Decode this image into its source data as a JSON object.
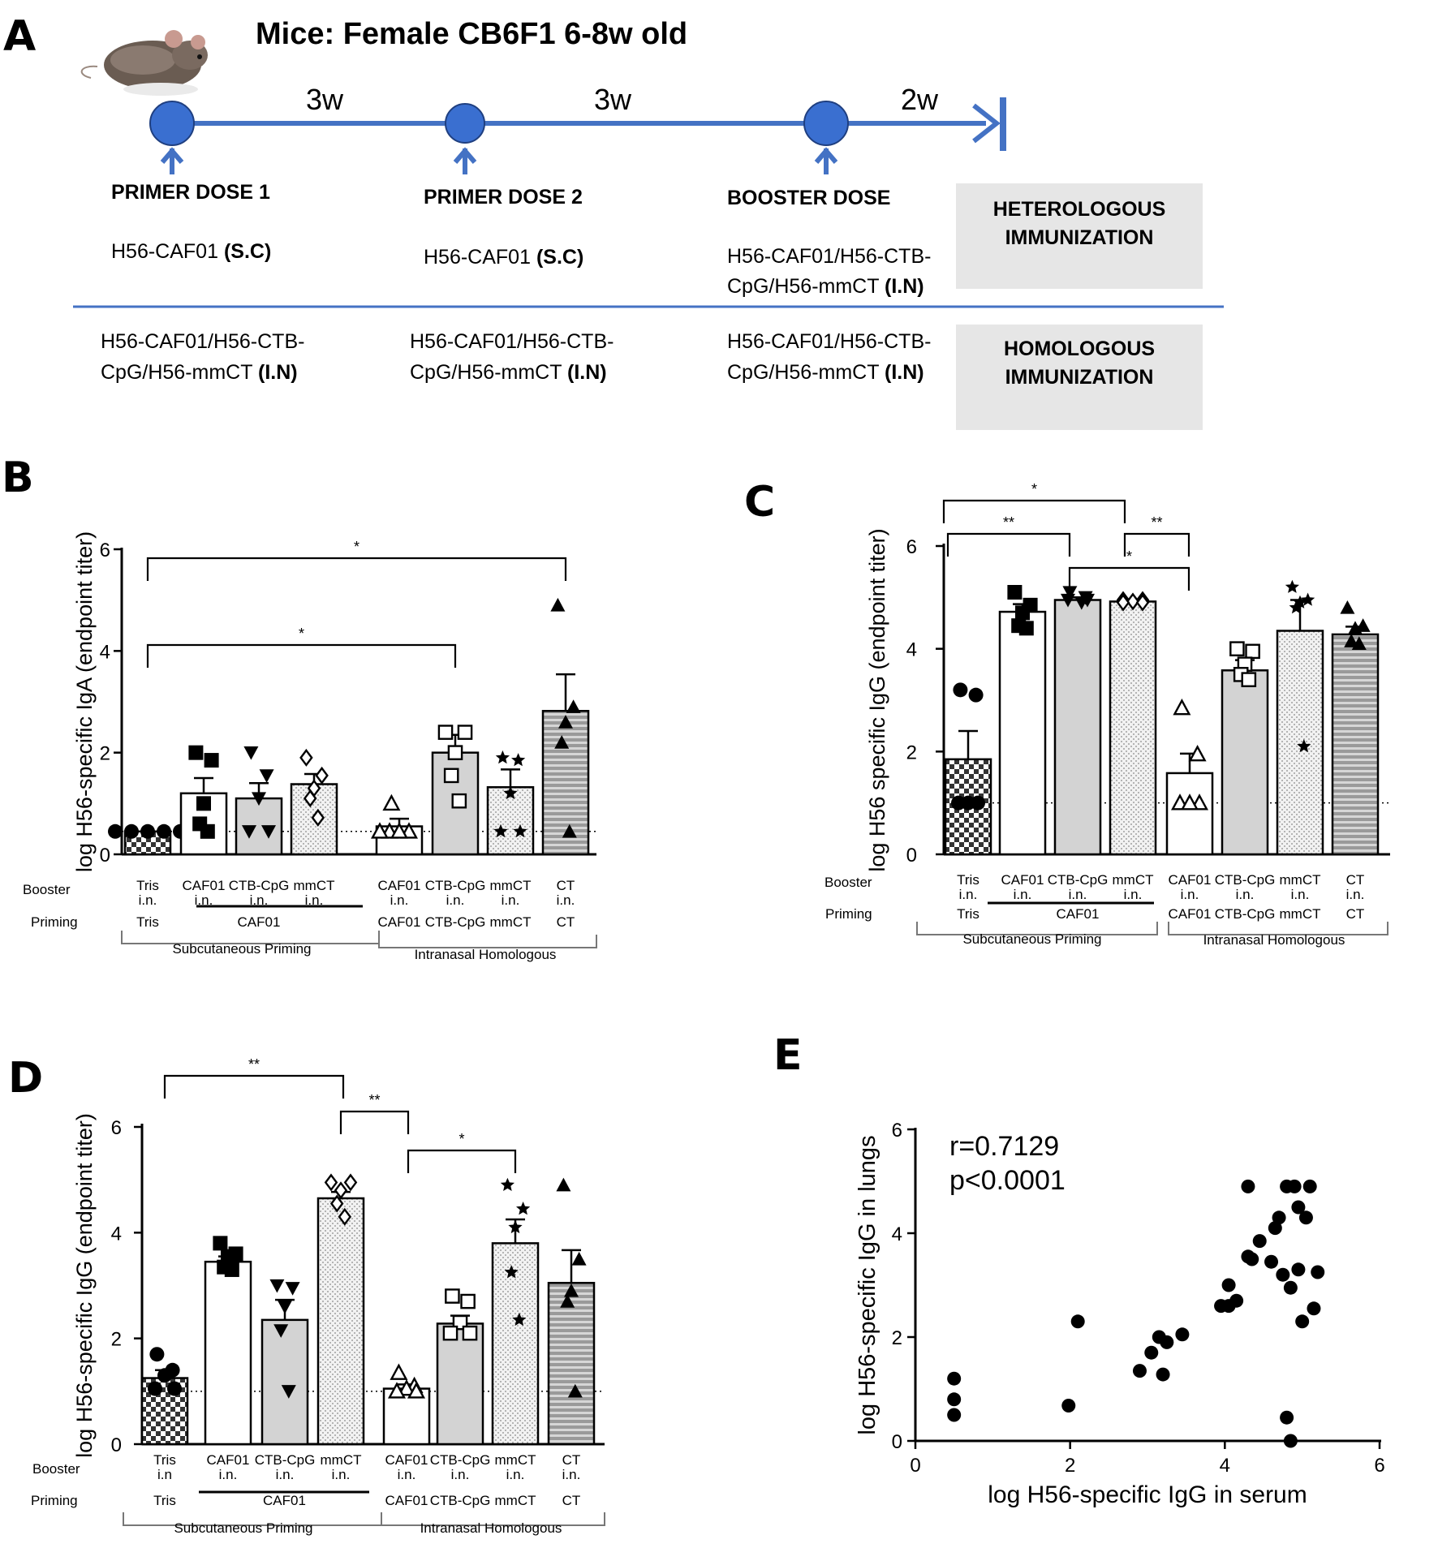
{
  "panel_a": {
    "letter": "A",
    "title": "Mice: Female CB6F1 6-8w old",
    "intervals": [
      "3w",
      "3w",
      "2w"
    ],
    "doses": [
      {
        "label": "PRIMER DOSE 1",
        "hetero_line1": "H56-CAF01 ",
        "hetero_bold": "(S.C)",
        "homo_line1": "H56-CAF01/H56-CTB-",
        "homo_line2": "CpG/H56-mmCT ",
        "homo_bold": "(I.N)"
      },
      {
        "label": "PRIMER DOSE 2",
        "hetero_line1": "H56-CAF01 ",
        "hetero_bold": "(S.C)",
        "homo_line1": "H56-CAF01/H56-CTB-",
        "homo_line2": "CpG/H56-mmCT ",
        "homo_bold": "(I.N)"
      },
      {
        "label": "BOOSTER DOSE",
        "hetero_line1": "H56-CAF01/H56-CTB-",
        "hetero_line2": "CpG/H56-mmCT ",
        "hetero_bold": "(I.N)",
        "homo_line1": "H56-CAF01/H56-CTB-",
        "homo_line2": "CpG/H56-mmCT ",
        "homo_bold": "(I.N)"
      }
    ],
    "box_hetero": [
      "HETEROLOGOUS",
      "IMMUNIZATION"
    ],
    "box_homo": [
      "HOMOLOGOUS",
      "IMMUNIZATION"
    ],
    "colors": {
      "timeline": "#4472C4",
      "node": "#3A6FD0",
      "box": "#E6E6E6"
    }
  },
  "chart_data": [
    {
      "panel": "B",
      "type": "bar",
      "ylabel": "log H56-specific IgA (endpoint titer)",
      "ylim": [
        0,
        6
      ],
      "yticks": [
        0,
        2,
        4,
        6
      ],
      "cutoff": 0.45,
      "categories": [
        {
          "top": "Tris",
          "bottom": "i.n.",
          "fill": "check",
          "marker": "circle",
          "mean": 0.45,
          "sem": 0,
          "points": [
            0.45,
            0.45,
            0.45,
            0.45,
            0.45
          ]
        },
        {
          "top": "CAF01",
          "bottom": "i.n.",
          "fill": "white",
          "marker": "square",
          "mean": 1.2,
          "sem": 0.3,
          "points": [
            2.0,
            1.85,
            1.0,
            0.6,
            0.45
          ]
        },
        {
          "top": "CTB-CpG",
          "bottom": "i.n.",
          "fill": "gray",
          "marker": "tridown",
          "mean": 1.1,
          "sem": 0.3,
          "points": [
            2.0,
            1.55,
            1.1,
            0.45,
            0.45
          ]
        },
        {
          "top": "mmCT",
          "bottom": "i.n.",
          "fill": "dots",
          "marker": "diamond",
          "mean": 1.38,
          "sem": 0.2,
          "points": [
            1.9,
            1.55,
            1.3,
            1.1,
            0.72
          ]
        },
        {
          "top": "CAF01",
          "bottom": "i.n.",
          "fill": "white",
          "marker": "triangle-open",
          "mean": 0.55,
          "sem": 0.15,
          "points": [
            1.0,
            0.45,
            0.45,
            0.45,
            0.45
          ]
        },
        {
          "top": "CTB-CpG",
          "bottom": "i.n.",
          "fill": "gray",
          "marker": "square-open",
          "mean": 2.0,
          "sem": 0.35,
          "points": [
            2.4,
            2.4,
            2.0,
            1.55,
            1.05
          ]
        },
        {
          "top": "mmCT",
          "bottom": "i.n.",
          "fill": "dots",
          "marker": "star",
          "mean": 1.32,
          "sem": 0.35,
          "points": [
            1.9,
            1.85,
            1.2,
            0.45,
            0.45
          ]
        },
        {
          "top": "CT",
          "bottom": "i.n.",
          "fill": "stripes",
          "marker": "triangle",
          "mean": 2.82,
          "sem": 0.72,
          "points": [
            4.9,
            2.9,
            2.6,
            2.2,
            0.45
          ]
        }
      ],
      "booster_label": "Booster",
      "priming_label": "Priming",
      "priming": [
        "Tris",
        "CAF01",
        "CAF01",
        "CTB-CpG",
        "mmCT",
        "CT"
      ],
      "groups": [
        "Subcutaneous Priming",
        "Intranasal Homologous"
      ],
      "sig": [
        {
          "label": "*"
        },
        {
          "label": "*"
        }
      ]
    },
    {
      "panel": "C",
      "type": "bar",
      "ylabel": "log H56 specific IgG (endpoint titer)",
      "ylim": [
        0,
        6
      ],
      "yticks": [
        0,
        2,
        4,
        6
      ],
      "cutoff": 1.0,
      "categories": [
        {
          "top": "Tris",
          "bottom": "i.n.",
          "fill": "check",
          "marker": "circle",
          "mean": 1.85,
          "sem": 0.55,
          "points": [
            3.2,
            3.1,
            1.0,
            1.0,
            1.0
          ]
        },
        {
          "top": "CAF01",
          "bottom": "i.n.",
          "fill": "white",
          "marker": "square",
          "mean": 4.72,
          "sem": 0.15,
          "points": [
            5.1,
            4.85,
            4.7,
            4.45,
            4.4
          ]
        },
        {
          "top": "CTB-CpG",
          "bottom": "i.n.",
          "fill": "gray",
          "marker": "tridown",
          "mean": 4.95,
          "sem": 0.05,
          "points": [
            5.1,
            5.0,
            4.95,
            4.95,
            4.9
          ]
        },
        {
          "top": "mmCT",
          "bottom": "i.n.",
          "fill": "dots",
          "marker": "diamond",
          "mean": 4.92,
          "sem": 0.04,
          "points": [
            4.95,
            4.95,
            4.92,
            4.9,
            4.9
          ]
        },
        {
          "top": "CAF01",
          "bottom": "i.n.",
          "fill": "white",
          "marker": "triangle-open",
          "mean": 1.58,
          "sem": 0.38,
          "points": [
            2.85,
            1.95,
            1.0,
            1.0,
            1.0
          ]
        },
        {
          "top": "CTB-CpG",
          "bottom": "i.n.",
          "fill": "gray",
          "marker": "square-open",
          "mean": 3.58,
          "sem": 0.2,
          "points": [
            4.0,
            3.95,
            3.7,
            3.5,
            3.4
          ]
        },
        {
          "top": "mmCT",
          "bottom": "i.n.",
          "fill": "dots",
          "marker": "star",
          "mean": 4.35,
          "sem": 0.6,
          "points": [
            5.2,
            4.95,
            4.9,
            4.8,
            2.1
          ]
        },
        {
          "top": "CT",
          "bottom": "i.n.",
          "fill": "stripes",
          "marker": "triangle",
          "mean": 4.28,
          "sem": 0.15,
          "points": [
            4.8,
            4.45,
            4.4,
            4.15,
            4.1
          ]
        }
      ],
      "booster_label": "Booster",
      "priming_label": "Priming",
      "priming": [
        "Tris",
        "CAF01",
        "CAF01",
        "CTB-CpG",
        "mmCT",
        "CT"
      ],
      "groups": [
        "Subcutaneous Priming",
        "Intranasal Homologous"
      ],
      "sig": [
        {
          "label": "*"
        },
        {
          "label": "**"
        },
        {
          "label": "*"
        },
        {
          "label": "**"
        }
      ]
    },
    {
      "panel": "D",
      "type": "bar",
      "ylabel": "log H56-specific IgG (endpoint titer)",
      "ylim": [
        0,
        6
      ],
      "yticks": [
        0,
        2,
        4,
        6
      ],
      "cutoff": 1.0,
      "categories": [
        {
          "top": "Tris",
          "bottom": "i.n",
          "fill": "check",
          "marker": "circle",
          "mean": 1.25,
          "sem": 0.15,
          "points": [
            1.7,
            1.4,
            1.3,
            1.05,
            1.05
          ]
        },
        {
          "top": "CAF01",
          "bottom": "i.n.",
          "fill": "white",
          "marker": "square",
          "mean": 3.45,
          "sem": 0.1,
          "points": [
            3.8,
            3.6,
            3.55,
            3.35,
            3.3
          ]
        },
        {
          "top": "CTB-CpG",
          "bottom": "i.n.",
          "fill": "gray",
          "marker": "tridown",
          "mean": 2.35,
          "sem": 0.38,
          "points": [
            3.0,
            2.95,
            2.6,
            2.15,
            1.0
          ]
        },
        {
          "top": "mmCT",
          "bottom": "i.n.",
          "fill": "dots",
          "marker": "diamond",
          "mean": 4.65,
          "sem": 0.12,
          "points": [
            4.95,
            4.95,
            4.8,
            4.55,
            4.3
          ]
        },
        {
          "top": "CAF01",
          "bottom": "i.n.",
          "fill": "white",
          "marker": "triangle-open",
          "mean": 1.05,
          "sem": 0.08,
          "points": [
            1.35,
            1.1,
            1.05,
            1.0,
            1.0
          ]
        },
        {
          "top": "CTB-CpG",
          "bottom": "i.n.",
          "fill": "gray",
          "marker": "square-open",
          "mean": 2.28,
          "sem": 0.15,
          "points": [
            2.8,
            2.7,
            2.3,
            2.1,
            2.1
          ]
        },
        {
          "top": "mmCT",
          "bottom": "i.n.",
          "fill": "dots",
          "marker": "star",
          "mean": 3.8,
          "sem": 0.45,
          "points": [
            4.9,
            4.45,
            4.1,
            3.25,
            2.35
          ]
        },
        {
          "top": "CT",
          "bottom": "i.n.",
          "fill": "stripes",
          "marker": "triangle",
          "mean": 3.05,
          "sem": 0.62,
          "points": [
            4.9,
            3.5,
            2.9,
            2.7,
            1.0
          ]
        }
      ],
      "booster_label": "Booster",
      "priming_label": "Priming",
      "priming": [
        "Tris",
        "CAF01",
        "CAF01",
        "CTB-CpG",
        "mmCT",
        "CT"
      ],
      "groups": [
        "Subcutaneous Priming",
        "Intranasal Homologous"
      ],
      "sig": [
        {
          "label": "**"
        },
        {
          "label": "**"
        },
        {
          "label": "*"
        }
      ]
    },
    {
      "panel": "E",
      "type": "scatter",
      "xlabel": "log H56-specific IgG in serum",
      "ylabel": "log H56-specific IgG in  lungs",
      "xlim": [
        0,
        6
      ],
      "ylim": [
        0,
        6
      ],
      "xticks": [
        0,
        2,
        4,
        6
      ],
      "yticks": [
        0,
        2,
        4,
        6
      ],
      "annotation": [
        "r=0.7129",
        "p<0.0001"
      ],
      "points": [
        [
          0.5,
          1.2
        ],
        [
          0.5,
          0.8
        ],
        [
          0.5,
          0.5
        ],
        [
          1.98,
          0.68
        ],
        [
          2.1,
          2.3
        ],
        [
          2.9,
          1.35
        ],
        [
          3.05,
          1.7
        ],
        [
          3.15,
          2.0
        ],
        [
          3.2,
          1.28
        ],
        [
          3.25,
          1.9
        ],
        [
          3.45,
          2.05
        ],
        [
          3.95,
          2.6
        ],
        [
          4.05,
          3.0
        ],
        [
          4.05,
          2.6
        ],
        [
          4.15,
          2.7
        ],
        [
          4.3,
          4.9
        ],
        [
          4.35,
          3.5
        ],
        [
          4.45,
          3.85
        ],
        [
          4.3,
          3.55
        ],
        [
          4.6,
          3.45
        ],
        [
          4.65,
          4.1
        ],
        [
          4.7,
          4.3
        ],
        [
          4.75,
          3.2
        ],
        [
          4.8,
          4.9
        ],
        [
          4.9,
          4.9
        ],
        [
          4.95,
          4.5
        ],
        [
          5.05,
          4.3
        ],
        [
          5.1,
          4.9
        ],
        [
          5.2,
          3.25
        ],
        [
          4.85,
          2.95
        ],
        [
          4.95,
          3.3
        ],
        [
          5.0,
          2.3
        ],
        [
          5.15,
          2.55
        ],
        [
          4.8,
          0.45
        ],
        [
          4.85,
          0.0
        ]
      ]
    }
  ]
}
